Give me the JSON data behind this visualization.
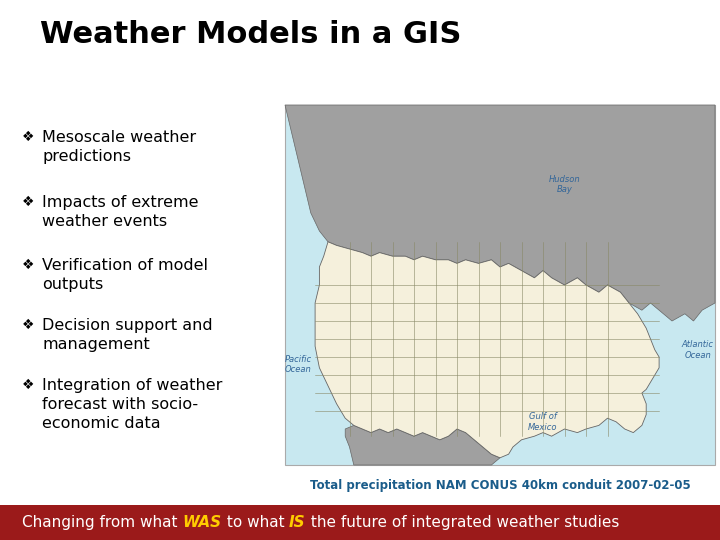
{
  "title": "Weather Models in a GIS",
  "title_fontsize": 22,
  "title_color": "#000000",
  "background_color": "#ffffff",
  "bullet_items": [
    "Mesoscale weather\npredictions",
    "Impacts of extreme\nweather events",
    "Verification of model\noutputs",
    "Decision support and\nmanagement",
    "Integration of weather\nforecast with socio-\neconomic data"
  ],
  "bullet_fontsize": 11.5,
  "bullet_color": "#000000",
  "bullet_symbol": "❖",
  "map_caption": "Total precipitation NAM CONUS 40km conduit 2007-02-05",
  "map_caption_color": "#1a5c8a",
  "map_caption_fontsize": 8.5,
  "footer_bg": "#9b1a1a",
  "footer_text_color": "#ffffff",
  "footer_highlight_color": "#ffcc00",
  "footer_fontsize": 11,
  "map_bg_color": "#c8e8f0",
  "map_land_color": "#f5f0dc",
  "map_gray_color": "#a0a0a0",
  "map_line_color": "#8b6914",
  "map_border_color": "#666666"
}
